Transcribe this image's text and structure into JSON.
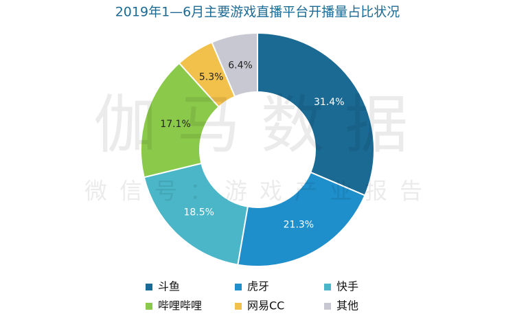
{
  "chart_data": {
    "type": "donut",
    "title": "2019年1—6月主要游戏直播平台开播量占比状况",
    "categories": [
      "斗鱼",
      "虎牙",
      "快手",
      "哔哩哔哩",
      "网易CC",
      "其他"
    ],
    "values": [
      31.4,
      21.3,
      18.5,
      17.1,
      5.3,
      6.4
    ],
    "value_labels": [
      "31.4%",
      "21.3%",
      "18.5%",
      "17.1%",
      "5.3%",
      "6.4%"
    ],
    "colors": [
      "#1b6a94",
      "#1e8fca",
      "#4ab6c8",
      "#8bc94a",
      "#f2c14b",
      "#c8c8d2"
    ],
    "watermark": [
      "伽马数据",
      "微信号：游戏产业报告"
    ]
  }
}
